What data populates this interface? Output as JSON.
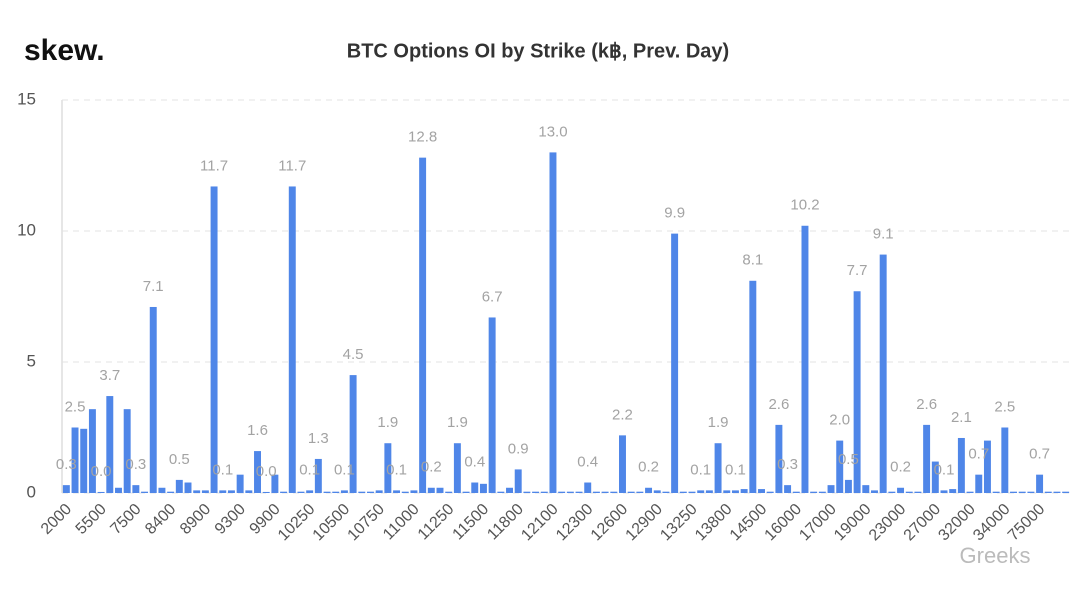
{
  "logo": "skew.",
  "watermark": "Greeks",
  "chart_data": {
    "type": "bar",
    "title": "BTC Options OI by Strike (k฿, Prev. Day)",
    "color": "#4f86e8",
    "ylim": [
      0,
      15
    ],
    "yticks": [
      0,
      5,
      10,
      15
    ],
    "grid": true,
    "categories": [
      "2000",
      null,
      null,
      null,
      "5500",
      null,
      null,
      null,
      "7500",
      null,
      null,
      null,
      "8400",
      null,
      null,
      null,
      "8900",
      null,
      null,
      null,
      "9300",
      null,
      null,
      null,
      "9900",
      null,
      null,
      null,
      "10250",
      null,
      null,
      null,
      "10500",
      null,
      null,
      null,
      "10750",
      null,
      null,
      null,
      "11000",
      null,
      null,
      null,
      "11250",
      null,
      null,
      null,
      "11500",
      null,
      null,
      null,
      "11800",
      null,
      null,
      null,
      "12100",
      null,
      null,
      null,
      "12300",
      null,
      null,
      null,
      "12600",
      null,
      null,
      null,
      "12900",
      null,
      null,
      null,
      "13250",
      null,
      null,
      null,
      "13800",
      null,
      null,
      null,
      "14500",
      null,
      null,
      null,
      "16000",
      null,
      null,
      null,
      "17000",
      null,
      null,
      null,
      "19000",
      null,
      null,
      null,
      "23000",
      null,
      null,
      null,
      "27000",
      null,
      null,
      null,
      "32000",
      null,
      null,
      null,
      "34000",
      null,
      null,
      null,
      "75000",
      null,
      null,
      null
    ],
    "values": [
      0.3,
      2.5,
      2.45,
      3.2,
      0.04,
      3.7,
      0.2,
      3.2,
      0.3,
      0.05,
      7.1,
      0.2,
      0.05,
      0.5,
      0.4,
      0.1,
      0.1,
      11.7,
      0.1,
      0.1,
      0.7,
      0.1,
      1.6,
      0.04,
      0.7,
      0.05,
      11.7,
      0.05,
      0.1,
      1.3,
      0.05,
      0.05,
      0.1,
      4.5,
      0.05,
      0.05,
      0.1,
      1.9,
      0.1,
      0.05,
      0.1,
      12.8,
      0.2,
      0.2,
      0.05,
      1.9,
      0.05,
      0.4,
      0.35,
      6.7,
      0.05,
      0.2,
      0.9,
      0.05,
      0.05,
      0.05,
      13,
      0.05,
      0.05,
      0.05,
      0.4,
      0.05,
      0.05,
      0.05,
      2.2,
      0.05,
      0.05,
      0.2,
      0.1,
      0.05,
      9.9,
      0.05,
      0.05,
      0.1,
      0.1,
      1.9,
      0.1,
      0.1,
      0.15,
      8.1,
      0.15,
      0.05,
      2.6,
      0.3,
      0.05,
      10.2,
      0.05,
      0.05,
      0.3,
      2,
      0.5,
      7.7,
      0.3,
      0.1,
      9.1,
      0.05,
      0.2,
      0.05,
      0.05,
      2.6,
      1.2,
      0.1,
      0.15,
      2.1,
      0.05,
      0.7,
      2,
      0.05,
      2.5,
      0.05,
      0.05,
      0.05,
      0.7,
      0.05,
      0.05,
      0.05
    ],
    "value_labels": [
      "0.3",
      "2.5",
      null,
      null,
      "0.0",
      "3.7",
      null,
      null,
      "0.3",
      null,
      "7.1",
      null,
      null,
      "0.5",
      null,
      null,
      null,
      "11.7",
      "0.1",
      null,
      null,
      null,
      "1.6",
      "0.0",
      null,
      null,
      "11.7",
      null,
      "0.1",
      "1.3",
      null,
      null,
      "0.1",
      "4.5",
      null,
      null,
      null,
      "1.9",
      "0.1",
      null,
      null,
      "12.8",
      "0.2",
      null,
      null,
      "1.9",
      null,
      "0.4",
      null,
      "6.7",
      null,
      null,
      "0.9",
      null,
      null,
      null,
      "13.0",
      null,
      null,
      null,
      "0.4",
      null,
      null,
      null,
      "2.2",
      null,
      null,
      "0.2",
      null,
      null,
      "9.9",
      null,
      null,
      "0.1",
      null,
      "1.9",
      null,
      "0.1",
      null,
      "8.1",
      null,
      null,
      "2.6",
      "0.3",
      null,
      "10.2",
      null,
      null,
      null,
      "2.0",
      "0.5",
      "7.7",
      null,
      null,
      "9.1",
      null,
      "0.2",
      null,
      null,
      "2.6",
      null,
      "0.1",
      null,
      "2.1",
      null,
      "0.7",
      null,
      null,
      "2.5",
      null,
      null,
      null,
      "0.7",
      null,
      null,
      null
    ]
  }
}
